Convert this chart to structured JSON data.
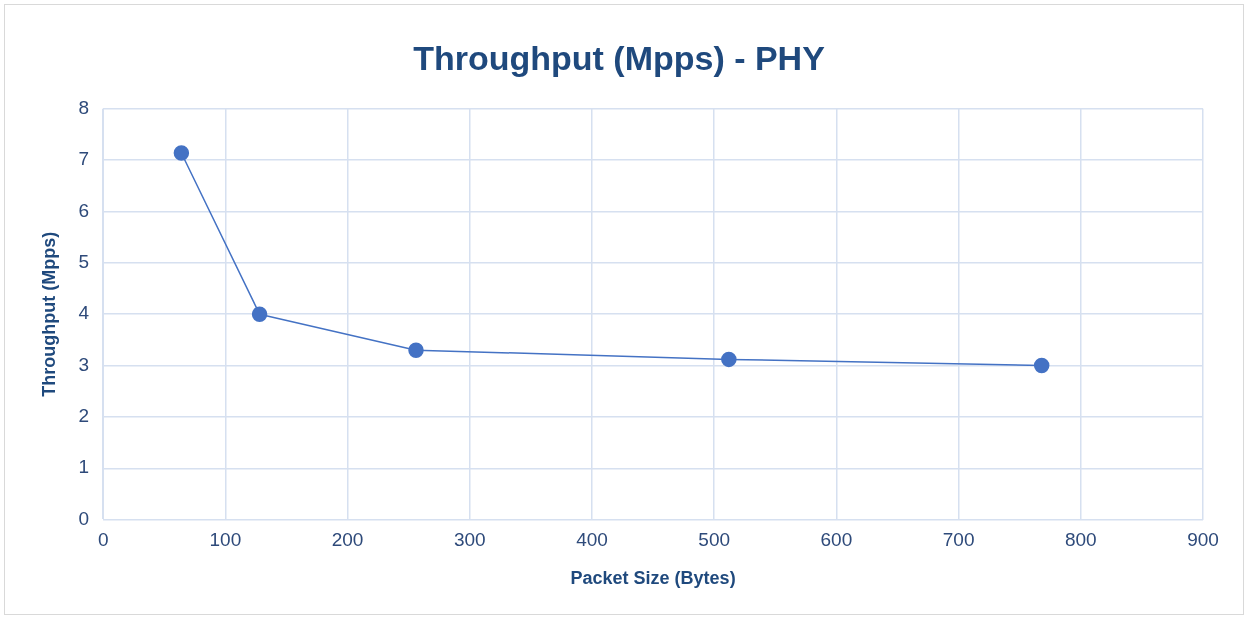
{
  "chart_data": {
    "type": "line",
    "title": "Throughput (Mpps) - PHY",
    "xlabel": "Packet Size (Bytes)",
    "ylabel": "Throughput (Mpps)",
    "x": [
      64,
      128,
      256,
      512,
      768
    ],
    "series": [
      {
        "color": "#4472c4",
        "values": [
          7.14,
          4.0,
          3.3,
          3.12,
          3.0
        ]
      }
    ],
    "xlim": [
      0,
      900
    ],
    "xticks": [
      0,
      100,
      200,
      300,
      400,
      500,
      600,
      700,
      800,
      900
    ],
    "ylim": [
      0,
      8
    ],
    "yticks": [
      0,
      1,
      2,
      3,
      4,
      5,
      6,
      7,
      8
    ],
    "grid": true,
    "marker": "circle",
    "line_style": "solid"
  }
}
